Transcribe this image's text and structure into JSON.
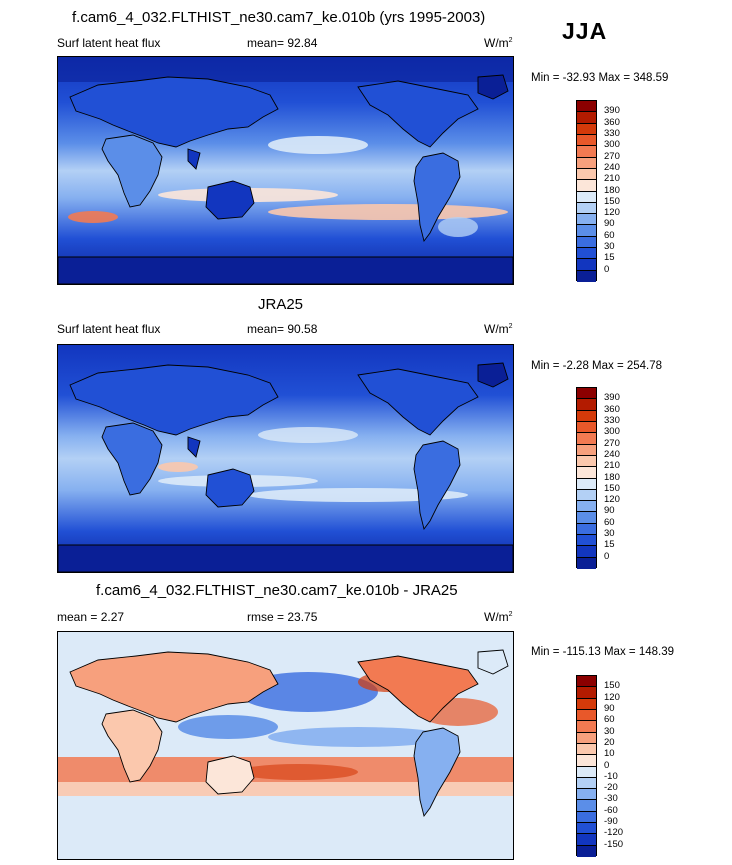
{
  "season": "JJA",
  "panels": [
    {
      "title": "f.cam6_4_032.FLTHIST_ne30.cam7_ke.010b (yrs 1995-2003)",
      "left_label": "Surf latent heat flux",
      "center_label": "mean=  92.84",
      "units": "W/m",
      "units_exp": "2",
      "minmax": "Min = -32.93 Max = 348.59",
      "colorbar_labels": [
        "390",
        "360",
        "330",
        "300",
        "270",
        "240",
        "210",
        "180",
        "150",
        "120",
        "90",
        "60",
        "30",
        "15",
        "0"
      ],
      "colorbar_colors": [
        "#8b0000",
        "#b31b00",
        "#d43a0a",
        "#e8582a",
        "#f27a52",
        "#f7a07d",
        "#fbc8ad",
        "#fce6d9",
        "#dceaf8",
        "#b3d0f5",
        "#86b0f0",
        "#5b8ee8",
        "#3a6de0",
        "#2150d5",
        "#1236bf",
        "#0a1f96"
      ]
    },
    {
      "title": "JRA25",
      "left_label": "Surf latent heat flux",
      "center_label": "mean=  90.58",
      "units": "W/m",
      "units_exp": "2",
      "minmax": "Min =  -2.28 Max = 254.78",
      "colorbar_labels": [
        "390",
        "360",
        "330",
        "300",
        "270",
        "240",
        "210",
        "180",
        "150",
        "120",
        "90",
        "60",
        "30",
        "15",
        "0"
      ],
      "colorbar_colors": [
        "#8b0000",
        "#b31b00",
        "#d43a0a",
        "#e8582a",
        "#f27a52",
        "#f7a07d",
        "#fbc8ad",
        "#fce6d9",
        "#dceaf8",
        "#b3d0f5",
        "#86b0f0",
        "#5b8ee8",
        "#3a6de0",
        "#2150d5",
        "#1236bf",
        "#0a1f96"
      ]
    },
    {
      "title": "f.cam6_4_032.FLTHIST_ne30.cam7_ke.010b - JRA25",
      "left_label": "mean =   2.27",
      "center_label": "rmse =  23.75",
      "units": "W/m",
      "units_exp": "2",
      "minmax": "Min = -115.13 Max = 148.39",
      "colorbar_labels": [
        "150",
        "120",
        "90",
        "60",
        "30",
        "20",
        "10",
        "0",
        "-10",
        "-20",
        "-30",
        "-60",
        "-90",
        "-120",
        "-150"
      ],
      "colorbar_colors": [
        "#8b0000",
        "#b31b00",
        "#d43a0a",
        "#e8582a",
        "#f27a52",
        "#f7a07d",
        "#fbc8ad",
        "#fce6d9",
        "#dceaf8",
        "#b3d0f5",
        "#86b0f0",
        "#5b8ee8",
        "#3a6de0",
        "#2150d5",
        "#1236bf",
        "#0a1f96"
      ]
    }
  ]
}
